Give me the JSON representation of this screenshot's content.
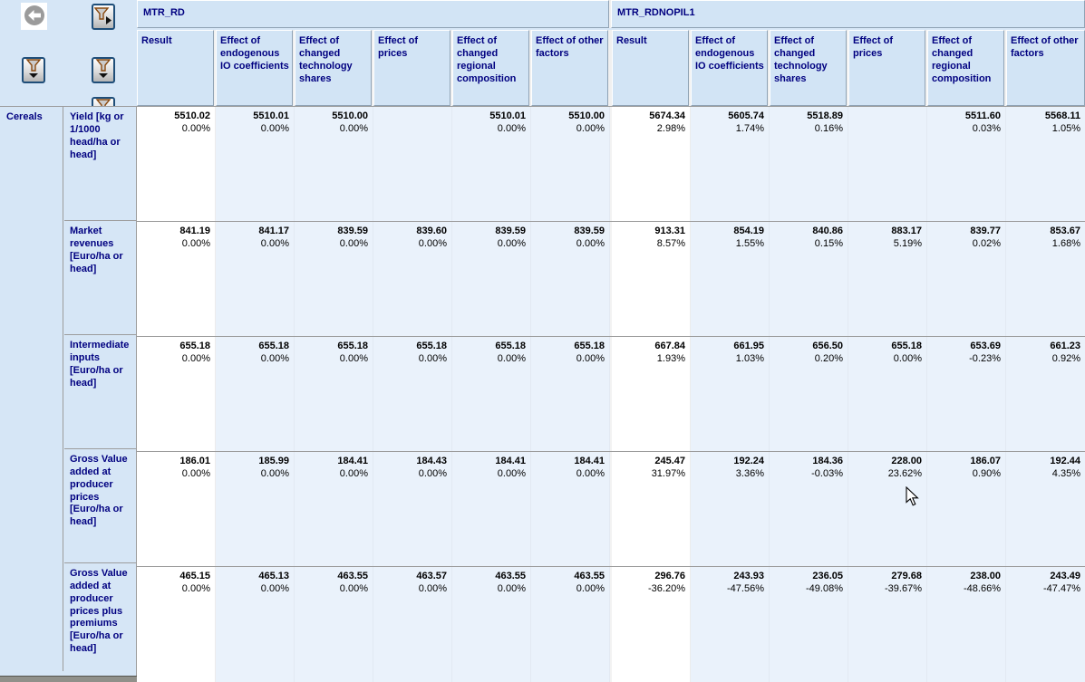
{
  "row_group": "Cereals",
  "toolbar": {
    "buttons": [
      {
        "icon": "back-circle-icon"
      },
      {
        "icon": "filter-funnel-right-arrow-icon"
      },
      {
        "icon": "filter-funnel-down-arrow-icon"
      },
      {
        "icon": "filter-funnel-down-arrow-icon"
      },
      {
        "icon": "filter-funnel-clipped-icon"
      }
    ]
  },
  "colors": {
    "navy_text": "#000080",
    "header_bg": "#d2e4f5",
    "page_bg": "#d6e6f6",
    "data_column_bg": "#eaf2fb",
    "result_column_bg": "#ffffff",
    "grid_line": "#9c9c9c"
  },
  "column_groups": [
    {
      "label": "MTR_RD",
      "columns": [
        "Result",
        "Effect of endogenous IO coefficients",
        "Effect of changed technology shares",
        "Effect of prices",
        "Effect of changed regional composition",
        "Effect of other factors"
      ]
    },
    {
      "label": "MTR_RDNOPIL1",
      "columns": [
        "Result",
        "Effect of endogenous IO coefficients",
        "Effect of changed technology shares",
        "Effect of prices",
        "Effect of changed regional composition",
        "Effect of other factors"
      ]
    }
  ],
  "rows": [
    {
      "label": "Yield [kg or 1/1000 head/ha or head]",
      "cells": [
        {
          "value": "5510.02",
          "pct": "0.00%"
        },
        {
          "value": "5510.01",
          "pct": "0.00%"
        },
        {
          "value": "5510.00",
          "pct": "0.00%"
        },
        null,
        {
          "value": "5510.01",
          "pct": "0.00%"
        },
        {
          "value": "5510.00",
          "pct": "0.00%"
        },
        {
          "value": "5674.34",
          "pct": "2.98%"
        },
        {
          "value": "5605.74",
          "pct": "1.74%"
        },
        {
          "value": "5518.89",
          "pct": "0.16%"
        },
        null,
        {
          "value": "5511.60",
          "pct": "0.03%"
        },
        {
          "value": "5568.11",
          "pct": "1.05%"
        }
      ]
    },
    {
      "label": "Market revenues [Euro/ha or head]",
      "cells": [
        {
          "value": "841.19",
          "pct": "0.00%"
        },
        {
          "value": "841.17",
          "pct": "0.00%"
        },
        {
          "value": "839.59",
          "pct": "0.00%"
        },
        {
          "value": "839.60",
          "pct": "0.00%"
        },
        {
          "value": "839.59",
          "pct": "0.00%"
        },
        {
          "value": "839.59",
          "pct": "0.00%"
        },
        {
          "value": "913.31",
          "pct": "8.57%"
        },
        {
          "value": "854.19",
          "pct": "1.55%"
        },
        {
          "value": "840.86",
          "pct": "0.15%"
        },
        {
          "value": "883.17",
          "pct": "5.19%"
        },
        {
          "value": "839.77",
          "pct": "0.02%"
        },
        {
          "value": "853.67",
          "pct": "1.68%"
        }
      ]
    },
    {
      "label": "Intermediate inputs [Euro/ha or head]",
      "cells": [
        {
          "value": "655.18",
          "pct": "0.00%"
        },
        {
          "value": "655.18",
          "pct": "0.00%"
        },
        {
          "value": "655.18",
          "pct": "0.00%"
        },
        {
          "value": "655.18",
          "pct": "0.00%"
        },
        {
          "value": "655.18",
          "pct": "0.00%"
        },
        {
          "value": "655.18",
          "pct": "0.00%"
        },
        {
          "value": "667.84",
          "pct": "1.93%"
        },
        {
          "value": "661.95",
          "pct": "1.03%"
        },
        {
          "value": "656.50",
          "pct": "0.20%"
        },
        {
          "value": "655.18",
          "pct": "0.00%"
        },
        {
          "value": "653.69",
          "pct": "-0.23%"
        },
        {
          "value": "661.23",
          "pct": "0.92%"
        }
      ]
    },
    {
      "label": "Gross Value added at producer prices [Euro/ha or head]",
      "cells": [
        {
          "value": "186.01",
          "pct": "0.00%"
        },
        {
          "value": "185.99",
          "pct": "0.00%"
        },
        {
          "value": "184.41",
          "pct": "0.00%"
        },
        {
          "value": "184.43",
          "pct": "0.00%"
        },
        {
          "value": "184.41",
          "pct": "0.00%"
        },
        {
          "value": "184.41",
          "pct": "0.00%"
        },
        {
          "value": "245.47",
          "pct": "31.97%"
        },
        {
          "value": "192.24",
          "pct": "3.36%"
        },
        {
          "value": "184.36",
          "pct": "-0.03%"
        },
        {
          "value": "228.00",
          "pct": "23.62%"
        },
        {
          "value": "186.07",
          "pct": "0.90%"
        },
        {
          "value": "192.44",
          "pct": "4.35%"
        }
      ]
    },
    {
      "label": "Gross Value added at producer prices plus premiums [Euro/ha or head]",
      "cells": [
        {
          "value": "465.15",
          "pct": "0.00%"
        },
        {
          "value": "465.13",
          "pct": "0.00%"
        },
        {
          "value": "463.55",
          "pct": "0.00%"
        },
        {
          "value": "463.57",
          "pct": "0.00%"
        },
        {
          "value": "463.55",
          "pct": "0.00%"
        },
        {
          "value": "463.55",
          "pct": "0.00%"
        },
        {
          "value": "296.76",
          "pct": "-36.20%"
        },
        {
          "value": "243.93",
          "pct": "-47.56%"
        },
        {
          "value": "236.05",
          "pct": "-49.08%"
        },
        {
          "value": "279.68",
          "pct": "-39.67%"
        },
        {
          "value": "238.00",
          "pct": "-48.66%"
        },
        {
          "value": "243.49",
          "pct": "-47.47%"
        }
      ]
    }
  ]
}
